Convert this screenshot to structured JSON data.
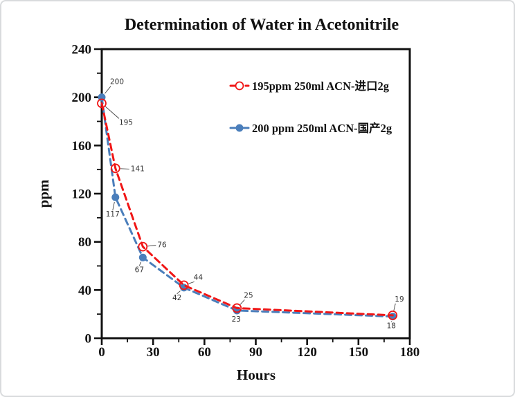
{
  "page": {
    "background": "#ffffff",
    "border_color": "#d9dbdd"
  },
  "chart_data": {
    "type": "line",
    "title": "Determination of Water in Acetonitrile",
    "xlabel": "Hours",
    "ylabel": "ppm",
    "xlim": [
      0,
      180
    ],
    "ylim": [
      0,
      240
    ],
    "x_major_ticks": [
      0,
      30,
      60,
      90,
      120,
      150,
      180
    ],
    "x_minor_step": 15,
    "y_major_ticks": [
      0,
      40,
      80,
      120,
      160,
      200,
      240
    ],
    "y_minor_step": 20,
    "grid": false,
    "frame_color": "#111111",
    "legend_position": "inside-top-right",
    "series": [
      {
        "name": "195ppm  250ml ACN-进口2g",
        "color": "#f01616",
        "line_style": "dashed",
        "marker": "open-circle",
        "points": [
          {
            "x": 0,
            "y": 195,
            "label": "195",
            "label_dx": 25,
            "label_dy": 31,
            "label_anchor": "start"
          },
          {
            "x": 8,
            "y": 141,
            "label": "141",
            "label_dx": 22,
            "label_dy": 4,
            "label_anchor": "start"
          },
          {
            "x": 24,
            "y": 76,
            "label": "76",
            "label_dx": 21,
            "label_dy": 1,
            "label_anchor": "start"
          },
          {
            "x": 48,
            "y": 44,
            "label": "44",
            "label_dx": 14,
            "label_dy": -8,
            "label_anchor": "start"
          },
          {
            "x": 79,
            "y": 25,
            "label": "25",
            "label_dx": 10,
            "label_dy": -15,
            "label_anchor": "start"
          },
          {
            "x": 170,
            "y": 19,
            "label": "19",
            "label_dx": 3,
            "label_dy": -20,
            "label_anchor": "start"
          }
        ]
      },
      {
        "name": "200 ppm 250ml ACN-国产2g",
        "color": "#4a7ebb",
        "line_style": "dashed",
        "marker": "filled-circle",
        "points": [
          {
            "x": 0,
            "y": 200,
            "label": "200",
            "label_dx": 12,
            "label_dy": -19,
            "label_anchor": "start"
          },
          {
            "x": 8,
            "y": 117,
            "label": "117",
            "label_dx": -4,
            "label_dy": 28,
            "label_anchor": "middle"
          },
          {
            "x": 24,
            "y": 67,
            "label": "67",
            "label_dx": -5,
            "label_dy": 21,
            "label_anchor": "middle"
          },
          {
            "x": 48,
            "y": 42,
            "label": "42",
            "label_dx": -10,
            "label_dy": 18,
            "label_anchor": "middle"
          },
          {
            "x": 79,
            "y": 23,
            "label": "23",
            "label_dx": -1,
            "label_dy": 16,
            "label_anchor": "middle"
          },
          {
            "x": 170,
            "y": 18,
            "label": "18",
            "label_dx": -2,
            "label_dy": 17,
            "label_anchor": "middle"
          }
        ]
      }
    ]
  }
}
